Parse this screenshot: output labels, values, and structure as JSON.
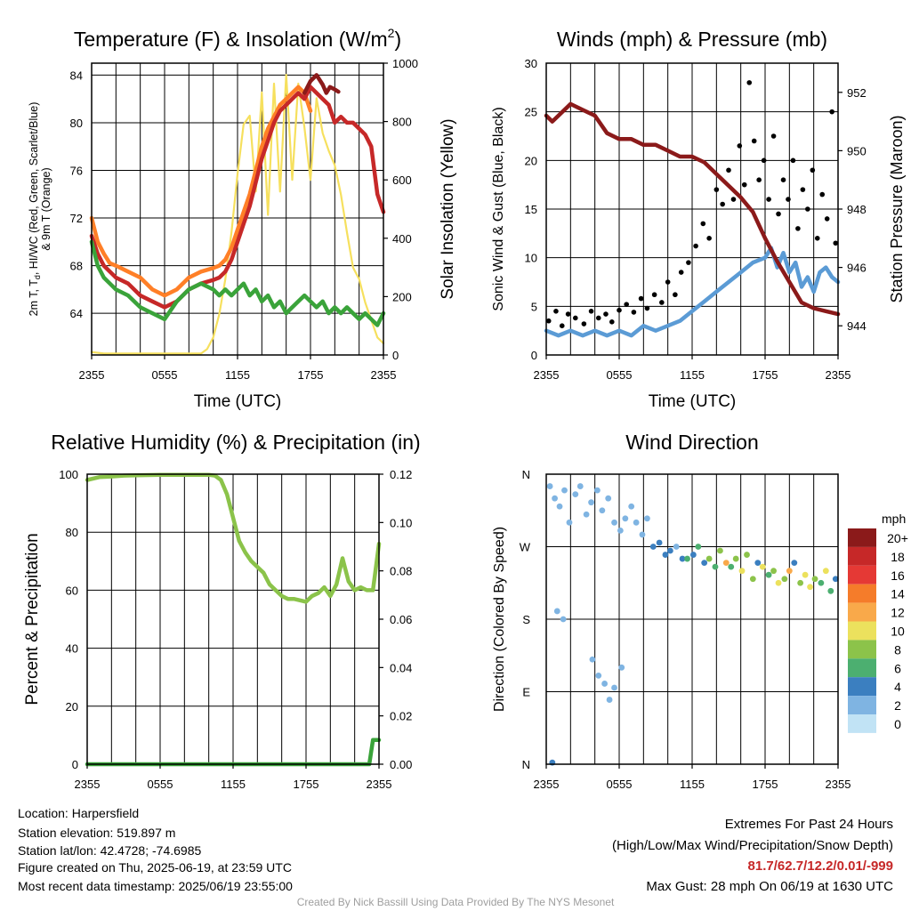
{
  "chart_data": [
    {
      "type": "line",
      "title": "Temperature (F) & Insolation (W/m²)",
      "title_main": "Temperature (F) & Insolation (W/m",
      "title_sup": "2",
      "title_end": ")",
      "xlabel": "Time (UTC)",
      "ylabel_left_line1": "2m T, T",
      "ylabel_left_sub": "d",
      "ylabel_left_rest": ", HI/WC (Red, Green, Scarlet/Blue)",
      "ylabel_left_line2": "& 9m T (Orange)",
      "ylabel_right": "Solar Insolation (Yellow)",
      "x_tick_labels": [
        "2355",
        "0555",
        "1155",
        "1755",
        "2355"
      ],
      "x_range": [
        0,
        24
      ],
      "ylim_left": [
        60.5,
        85
      ],
      "yticks_left": [
        64,
        68,
        72,
        76,
        80,
        84
      ],
      "ylim_right": [
        0,
        1000
      ],
      "yticks_right": [
        0,
        200,
        400,
        600,
        800,
        1000
      ],
      "series": [
        {
          "color": "#f6e05e",
          "axis": "right",
          "x": [
            0,
            1,
            2,
            3,
            4,
            5,
            6,
            7,
            8,
            9,
            9.5,
            10,
            10.5,
            11,
            11.5,
            12,
            12.5,
            13,
            13.5,
            14,
            14.5,
            15,
            15.5,
            16,
            16.5,
            17,
            17.5,
            18,
            18.5,
            19,
            19.5,
            20,
            20.5,
            21,
            21.5,
            22,
            22.5,
            23,
            23.5,
            24
          ],
          "values": [
            10,
            5,
            5,
            5,
            5,
            5,
            5,
            5,
            5,
            5,
            20,
            60,
            140,
            260,
            420,
            620,
            790,
            820,
            560,
            900,
            480,
            930,
            560,
            960,
            600,
            930,
            780,
            600,
            880,
            760,
            700,
            650,
            550,
            420,
            300,
            260,
            180,
            120,
            60,
            40
          ]
        },
        {
          "color": "#ff7f27",
          "axis": "left",
          "x": [
            0,
            0.5,
            1,
            1.5,
            2,
            3,
            4,
            5,
            6,
            7,
            8,
            9,
            10,
            10.5,
            11,
            11.5,
            12,
            12.5,
            13,
            13.5,
            14,
            14.5,
            15,
            15.5,
            16,
            16.5,
            17,
            17.5,
            18
          ],
          "values": [
            72,
            70,
            69,
            68.2,
            68,
            67.5,
            67,
            66,
            65.5,
            66,
            67,
            67.5,
            67.8,
            68,
            68.5,
            69.5,
            71,
            72.5,
            74,
            76,
            78,
            79.5,
            80.5,
            81.5,
            82,
            82.5,
            83,
            82.5,
            81
          ]
        },
        {
          "color": "#c62828",
          "axis": "left",
          "x": [
            0,
            0.5,
            1,
            2,
            3,
            4,
            5,
            6,
            7,
            8,
            9,
            10,
            10.5,
            11,
            11.5,
            12,
            12.5,
            13,
            13.5,
            14,
            14.5,
            15,
            15.5,
            16,
            16.5,
            17,
            17.5,
            18,
            18.5,
            19,
            19.5,
            20,
            20.5,
            21,
            21.5,
            22,
            22.5,
            23,
            23.5,
            24
          ],
          "values": [
            70.5,
            69,
            68,
            67,
            66.5,
            65.5,
            65,
            64.5,
            65,
            66,
            66.5,
            66.8,
            67,
            67.5,
            68.5,
            70,
            71.5,
            73,
            75,
            77,
            78.5,
            80,
            81,
            81.5,
            82,
            82.5,
            82,
            83,
            82.5,
            82,
            81.5,
            80,
            80.5,
            80,
            80,
            79.5,
            79,
            78,
            74,
            72.5
          ]
        },
        {
          "color": "#8b1a1a",
          "axis": "left",
          "x": [
            17.5,
            18,
            18.5,
            19,
            19.3,
            19.6,
            20,
            20.3
          ],
          "values": [
            82.5,
            83.5,
            84,
            83.2,
            82.5,
            83,
            82.8,
            82.6
          ]
        },
        {
          "color": "#3aa33a",
          "axis": "left",
          "x": [
            0,
            0.5,
            1,
            1.5,
            2,
            3,
            4,
            5,
            6,
            7,
            8,
            9,
            10,
            10.5,
            11,
            11.5,
            12,
            12.5,
            13,
            13.5,
            14,
            14.5,
            15,
            15.5,
            16,
            16.5,
            17,
            17.5,
            18,
            18.5,
            19,
            19.5,
            20,
            20.5,
            21,
            21.5,
            22,
            22.5,
            23,
            23.5,
            24
          ],
          "values": [
            70,
            68,
            67,
            66.5,
            66,
            65.5,
            64.5,
            64,
            63.5,
            65,
            66,
            66.5,
            66,
            65.5,
            66,
            65.5,
            66,
            66.5,
            65.5,
            66,
            65,
            65.5,
            64.5,
            65,
            64,
            64.5,
            65,
            65.5,
            65,
            64.5,
            65,
            64,
            64.5,
            64,
            64.5,
            64,
            63.5,
            64,
            63.5,
            63,
            64
          ]
        }
      ]
    },
    {
      "type": "line",
      "title": "Winds (mph) & Pressure (mb)",
      "xlabel": "Time (UTC)",
      "ylabel_left": "Sonic Wind & Gust (Blue, Black)",
      "ylabel_right": "Station Pressure (Maroon)",
      "x_tick_labels": [
        "2355",
        "0555",
        "1155",
        "1755",
        "2355"
      ],
      "x_range": [
        0,
        24
      ],
      "ylim_left": [
        0,
        30
      ],
      "yticks_left": [
        0,
        5,
        10,
        15,
        20,
        25,
        30
      ],
      "ylim_right": [
        943,
        953
      ],
      "yticks_right": [
        944,
        946,
        948,
        950,
        952
      ],
      "series": [
        {
          "name": "",
          "color": "#5b9bd5",
          "axis": "left",
          "x": [
            0,
            1,
            2,
            3,
            4,
            5,
            6,
            7,
            8,
            9,
            10,
            11,
            12,
            13,
            14,
            15,
            16,
            17,
            18,
            18.5,
            19,
            19.5,
            20,
            20.5,
            21,
            21.5,
            22,
            22.5,
            23,
            23.5,
            24
          ],
          "values": [
            2.5,
            2,
            2.5,
            2,
            2.5,
            2,
            2.5,
            2,
            3,
            2.5,
            3,
            3.5,
            4.5,
            5.5,
            6.5,
            7.5,
            8.5,
            9.5,
            10,
            11,
            9,
            10.5,
            8.5,
            9.5,
            7,
            8,
            6.5,
            8.5,
            9,
            8,
            7.5
          ]
        },
        {
          "name": "",
          "color": "#8b1a1a",
          "axis": "right",
          "x": [
            0,
            0.5,
            1,
            2,
            3,
            4,
            5,
            6,
            7,
            8,
            9,
            10,
            11,
            12,
            13,
            14,
            15,
            16,
            17,
            18,
            19,
            20,
            21,
            22,
            23,
            24
          ],
          "values": [
            951.2,
            951,
            951.2,
            951.6,
            951.4,
            951.2,
            950.6,
            950.4,
            950.4,
            950.2,
            950.2,
            950,
            949.8,
            949.8,
            949.6,
            949.2,
            948.8,
            948.4,
            947.9,
            947,
            946.2,
            945.5,
            944.8,
            944.6,
            944.5,
            944.4
          ]
        },
        {
          "name": "",
          "color": "#000000",
          "axis": "left",
          "type": "scatter",
          "x": [
            0.2,
            0.8,
            1.3,
            1.8,
            2.4,
            3.1,
            3.7,
            4.3,
            4.9,
            5.4,
            6,
            6.6,
            7.2,
            7.8,
            8.3,
            8.9,
            9.5,
            10,
            10.6,
            11.1,
            11.7,
            12.3,
            12.9,
            13.4,
            14,
            14.5,
            15,
            15.4,
            15.9,
            16.3,
            16.7,
            17.1,
            17.5,
            17.9,
            18.3,
            18.7,
            19.1,
            19.5,
            19.9,
            20.3,
            20.7,
            21.1,
            21.5,
            21.9,
            22.3,
            22.7,
            23.1,
            23.5,
            23.8
          ],
          "values": [
            3.5,
            4.5,
            3,
            4.2,
            3.8,
            3.2,
            4.5,
            3.8,
            4.2,
            3.4,
            4.6,
            5.2,
            4.4,
            5.8,
            4.8,
            6.2,
            5.4,
            7.5,
            6.2,
            8.5,
            9.5,
            11.2,
            13.5,
            12,
            17,
            15.5,
            19,
            16,
            21.5,
            17.5,
            28,
            22,
            18,
            20,
            16,
            22.5,
            14.5,
            18,
            16,
            20,
            13,
            17,
            15,
            19,
            12,
            16.5,
            14,
            25,
            11.5
          ]
        }
      ]
    },
    {
      "type": "line",
      "title": "Relative Humidity (%) & Precipitation (in)",
      "ylabel_left": "Percent & Precipitation",
      "x_tick_labels": [
        "2355",
        "0555",
        "1155",
        "1755",
        "2355"
      ],
      "x_range": [
        0,
        24
      ],
      "ylim_left": [
        0,
        100
      ],
      "yticks_left": [
        0,
        20,
        40,
        60,
        80,
        100
      ],
      "ylim_right": [
        0,
        0.12
      ],
      "ytick_labels_right": [
        "0.00",
        "0.02",
        "0.04",
        "0.06",
        "0.08",
        "0.10",
        "0.12"
      ],
      "series": [
        {
          "color": "#8bc34a",
          "axis": "left",
          "x": [
            0,
            1,
            2,
            3,
            4,
            5,
            6,
            7,
            8,
            9,
            10,
            10.5,
            11,
            11.5,
            12,
            12.5,
            13,
            13.5,
            14,
            14.5,
            15,
            15.5,
            16,
            16.5,
            17,
            17.5,
            18,
            18.5,
            19,
            19.5,
            20,
            20.5,
            21,
            21.5,
            22,
            22.5,
            23,
            23.5,
            24
          ],
          "values": [
            98,
            99,
            99.2,
            99.5,
            99.6,
            99.7,
            99.8,
            99.8,
            99.8,
            99.8,
            99.8,
            99.5,
            98,
            93,
            85,
            77,
            73,
            70,
            68,
            66,
            62,
            60,
            58,
            57,
            57,
            56.5,
            56,
            58,
            59,
            61,
            58,
            62,
            71,
            63,
            60,
            61,
            60,
            60,
            76
          ]
        },
        {
          "color": "#3aa33a",
          "axis": "right",
          "x": [
            0,
            2,
            4,
            6,
            8,
            10,
            12,
            14,
            16,
            18,
            20,
            22,
            23.2,
            23.5,
            24
          ],
          "values": [
            0,
            0,
            0,
            0,
            0,
            0,
            0,
            0,
            0,
            0,
            0,
            0,
            0,
            0.01,
            0.01
          ]
        }
      ]
    },
    {
      "type": "scatter",
      "title": "Wind Direction",
      "ylabel_left": "Direction (Colored By Speed)",
      "x_tick_labels": [
        "2355",
        "0555",
        "1155",
        "1755",
        "2355"
      ],
      "x_range": [
        0,
        24
      ],
      "ylim_left": [
        0,
        360
      ],
      "ytick_labels": [
        "N",
        "E",
        "S",
        "W",
        "N"
      ],
      "legend_title": "mph",
      "legend_labels": [
        "20+",
        "18",
        "16",
        "14",
        "12",
        "10",
        "8",
        "6",
        "4",
        "2",
        "0"
      ],
      "legend_colors": [
        "#8b1a1a",
        "#c62828",
        "#e53935",
        "#f57c2a",
        "#f9a94a",
        "#ece15d",
        "#8cc34a",
        "#4caf70",
        "#3b7fc0",
        "#7fb4e2",
        "#c1e3f5"
      ],
      "points_x": [
        0.3,
        0.7,
        1.1,
        1.5,
        1.9,
        2.4,
        2.8,
        3.3,
        3.7,
        4.2,
        4.6,
        5.1,
        5.6,
        6.1,
        6.5,
        7,
        7.4,
        7.9,
        8.3,
        8.8,
        9.3,
        9.8,
        10.2,
        10.7,
        11.2,
        11.6,
        12.1,
        12.5,
        13,
        13.4,
        13.9,
        14.3,
        14.8,
        15.2,
        15.6,
        16.1,
        16.5,
        17,
        17.4,
        17.8,
        18.3,
        18.7,
        19.1,
        19.6,
        20,
        20.4,
        20.9,
        21.3,
        21.7,
        22.1,
        22.6,
        23,
        23.4,
        23.8,
        0.9,
        1.4,
        3.8,
        4.3,
        4.8,
        5.2,
        5.6,
        6.2,
        0.5
      ],
      "points_y": [
        345,
        330,
        320,
        340,
        300,
        335,
        345,
        310,
        325,
        340,
        315,
        330,
        300,
        290,
        305,
        320,
        300,
        285,
        305,
        270,
        275,
        260,
        265,
        270,
        255,
        255,
        260,
        270,
        250,
        255,
        245,
        265,
        250,
        245,
        255,
        240,
        260,
        230,
        250,
        245,
        235,
        240,
        225,
        230,
        240,
        250,
        225,
        235,
        220,
        230,
        225,
        240,
        215,
        230,
        190,
        180,
        130,
        110,
        100,
        80,
        95,
        120,
        2
      ],
      "points_speed": [
        1,
        1,
        2,
        1,
        2,
        1,
        2,
        1,
        2,
        1,
        1,
        2,
        2,
        1,
        2,
        2,
        2,
        2,
        1,
        3,
        3,
        4,
        3,
        2,
        4,
        5,
        3,
        6,
        4,
        7,
        6,
        8,
        12,
        6,
        8,
        10,
        8,
        7,
        4,
        9,
        6,
        8,
        10,
        7,
        12,
        4,
        8,
        9,
        10,
        8,
        6,
        9,
        5,
        4,
        1,
        1,
        1,
        1,
        1,
        1,
        1,
        2,
        4
      ]
    }
  ],
  "footer": {
    "location": "Location: Harpersfield",
    "elevation": "Station elevation: 519.897 m",
    "latlon": "Station lat/lon: 42.4728; -74.6985",
    "created": "Figure created on Thu, 2025-06-19, at 23:59 UTC",
    "recent": "Most recent data timestamp: 2025/06/19 23:55:00",
    "extremes_title": "Extremes For Past 24 Hours",
    "extremes_desc": "(High/Low/Max Wind/Precipitation/Snow Depth)",
    "extremes_values": "81.7/62.7/12.2/0.01/-999",
    "max_gust": "Max Gust: 28 mph On 06/19 at 1630 UTC",
    "credit": "Created By Nick Bassill Using Data Provided By The NYS Mesonet"
  }
}
